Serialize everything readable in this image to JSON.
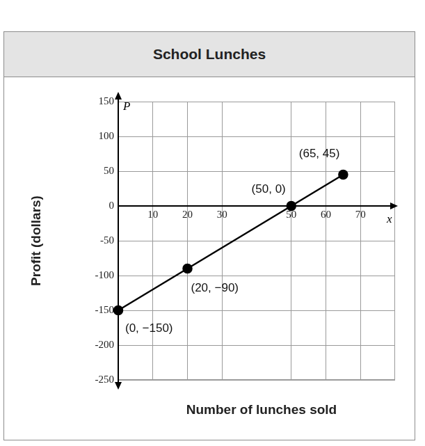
{
  "chart_data": {
    "type": "line",
    "title": "School Lunches",
    "x_label": "Number of lunches sold",
    "y_label": "Profit (dollars)",
    "x_symbol": "x",
    "y_symbol": "P",
    "x": [
      0,
      20,
      50,
      65
    ],
    "values": [
      -150,
      -90,
      0,
      45
    ],
    "value_labels": [
      "(0, −150)",
      "(20, −90)",
      "(50, 0)",
      "(65, 45)"
    ],
    "data_labels": true,
    "color": "#000000",
    "marker": "circle",
    "xlim": [
      0,
      80
    ],
    "xticks": [
      10,
      20,
      30,
      50,
      60,
      70
    ],
    "ylim": [
      -250,
      150
    ],
    "yticks": [
      -250,
      -200,
      -150,
      -100,
      -50,
      0,
      50,
      100,
      150
    ],
    "grid": true
  }
}
